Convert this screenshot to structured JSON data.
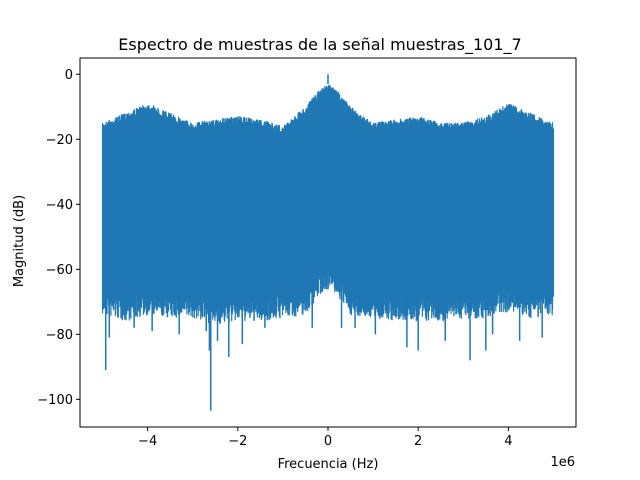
{
  "chart_data": {
    "type": "line",
    "title": "Espectro de muestras de la señal muestras_101_7",
    "xlabel": "Frecuencia (Hz)",
    "ylabel": "Magnitud (dB)",
    "x_offset_label": "1e6",
    "xlim": [
      -5.5,
      5.5
    ],
    "ylim": [
      -108.5,
      5
    ],
    "x_ticks": [
      -4,
      -2,
      0,
      2,
      4
    ],
    "x_tick_labels": [
      "−4",
      "−2",
      "0",
      "2",
      "4"
    ],
    "y_ticks": [
      0,
      -20,
      -40,
      -60,
      -80,
      -100
    ],
    "y_tick_labels": [
      "0",
      "−20",
      "−40",
      "−60",
      "−80",
      "−100"
    ],
    "grid": false,
    "series": [
      {
        "color": "#1f77b4",
        "x_range": [
          -5.0,
          5.0
        ],
        "peak": {
          "x": 0.0,
          "y": 0
        },
        "upper_envelope": {
          "x": [
            -5.0,
            -4.5,
            -4.0,
            -3.5,
            -3.0,
            -2.5,
            -2.0,
            -1.5,
            -1.0,
            -0.5,
            -0.2,
            0.0,
            0.2,
            0.5,
            1.0,
            1.5,
            2.0,
            2.5,
            3.0,
            3.5,
            4.0,
            4.5,
            5.0
          ],
          "y": [
            -15,
            -12,
            -9,
            -12,
            -15,
            -14,
            -13,
            -14,
            -16,
            -10,
            -5,
            -3,
            -5,
            -10,
            -15,
            -14,
            -13,
            -15,
            -15,
            -13,
            -9,
            -12,
            -15
          ]
        },
        "lower_envelope": {
          "x": [
            -5.0,
            -4.5,
            -4.0,
            -3.5,
            -3.0,
            -2.5,
            -2.0,
            -1.5,
            -1.0,
            -0.5,
            -0.2,
            0.0,
            0.2,
            0.5,
            1.0,
            1.5,
            2.0,
            2.5,
            3.0,
            3.5,
            4.0,
            4.5,
            5.0
          ],
          "y": [
            -66,
            -68,
            -66,
            -67,
            -67,
            -69,
            -68,
            -68,
            -67,
            -66,
            -60,
            -58,
            -60,
            -66,
            -67,
            -68,
            -68,
            -68,
            -67,
            -67,
            -65,
            -67,
            -66
          ]
        },
        "deep_dips": [
          {
            "x": -4.93,
            "y": -91
          },
          {
            "x": -4.85,
            "y": -81
          },
          {
            "x": -4.3,
            "y": -78
          },
          {
            "x": -3.9,
            "y": -79
          },
          {
            "x": -3.3,
            "y": -80
          },
          {
            "x": -2.7,
            "y": -79
          },
          {
            "x": -2.63,
            "y": -85
          },
          {
            "x": -2.6,
            "y": -103.5
          },
          {
            "x": -2.45,
            "y": -82
          },
          {
            "x": -2.2,
            "y": -87
          },
          {
            "x": -1.9,
            "y": -83
          },
          {
            "x": -1.4,
            "y": -78
          },
          {
            "x": -0.35,
            "y": -78
          },
          {
            "x": 0.3,
            "y": -78
          },
          {
            "x": 0.6,
            "y": -78
          },
          {
            "x": 1.05,
            "y": -80
          },
          {
            "x": 1.75,
            "y": -84
          },
          {
            "x": 2.0,
            "y": -85
          },
          {
            "x": 2.6,
            "y": -82
          },
          {
            "x": 3.15,
            "y": -88
          },
          {
            "x": 3.5,
            "y": -85
          },
          {
            "x": 3.65,
            "y": -80
          },
          {
            "x": 4.25,
            "y": -82
          },
          {
            "x": 4.75,
            "y": -81
          }
        ]
      }
    ]
  }
}
